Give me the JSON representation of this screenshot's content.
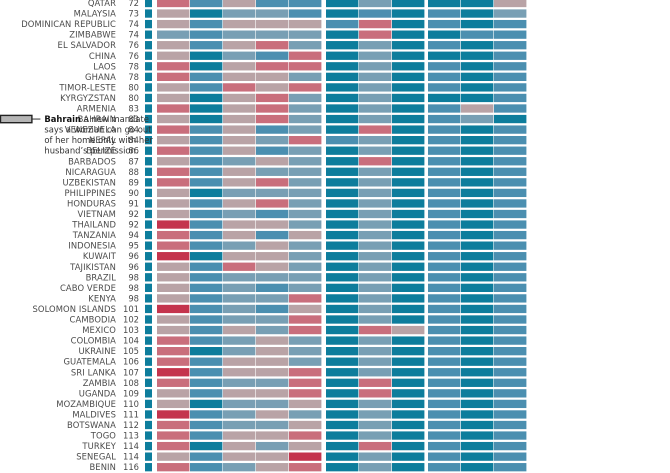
{
  "chart_data": {
    "type": "heatmap",
    "row_labels": [
      "QATAR",
      "MALAYSIA",
      "DOMINICAN REPUBLIC",
      "ZIMBABWE",
      "EL SALVADOR",
      "CHINA",
      "LAOS",
      "GHANA",
      "TIMOR-LESTE",
      "KYRGYZSTAN",
      "ARMENIA",
      "BAHRAIN",
      "VENEZUELA",
      "NEPAL",
      "BELIZE",
      "BARBADOS",
      "NICARAGUA",
      "UZBEKISTAN",
      "PHILIPPINES",
      "HONDURAS",
      "VIETNAM",
      "THAILAND",
      "TANZANIA",
      "INDONESIA",
      "KUWAIT",
      "TAJIKISTAN",
      "BRAZIL",
      "CABO VERDE",
      "KENYA",
      "SOLOMON ISLANDS",
      "CAMBODIA",
      "MEXICO",
      "COLOMBIA",
      "UKRAINE",
      "GUATEMALA",
      "SRI LANKA",
      "ZAMBIA",
      "UGANDA",
      "MOZAMBIQUE",
      "MALDIVES",
      "BOTSWANA",
      "TOGO",
      "TURKEY",
      "SENEGAL",
      "BENIN"
    ],
    "ranks": [
      "72",
      "73",
      "74",
      "74",
      "76",
      "76",
      "78",
      "78",
      "80",
      "80",
      "83",
      "83",
      "84",
      "84",
      "86",
      "87",
      "88",
      "89",
      "90",
      "91",
      "92",
      "92",
      "94",
      "95",
      "96",
      "96",
      "98",
      "98",
      "98",
      "101",
      "102",
      "103",
      "104",
      "105",
      "106",
      "107",
      "108",
      "109",
      "110",
      "111",
      "112",
      "113",
      "114",
      "114",
      "116"
    ],
    "level_colors": {
      "0": "#c4344d",
      "1": "#c96e7c",
      "2": "#b9a3a6",
      "3": "#789fb4",
      "4": "#4b8fb0",
      "5": "#0d7d9c"
    },
    "groups": [
      {
        "columns": 5
      },
      {
        "columns": 3
      },
      {
        "columns": 3
      }
    ],
    "grid": [
      [
        1,
        4,
        2,
        4,
        4,
        5,
        3,
        5,
        5,
        5,
        2
      ],
      [
        2,
        5,
        3,
        3,
        4,
        5,
        4,
        5,
        4,
        5,
        3
      ],
      [
        2,
        4,
        2,
        2,
        2,
        4,
        1,
        5,
        4,
        5,
        4
      ],
      [
        3,
        4,
        3,
        3,
        3,
        5,
        1,
        5,
        5,
        4,
        4
      ],
      [
        2,
        4,
        2,
        1,
        3,
        5,
        3,
        5,
        4,
        5,
        4
      ],
      [
        2,
        5,
        3,
        4,
        1,
        5,
        3,
        5,
        5,
        5,
        4
      ],
      [
        1,
        5,
        2,
        1,
        1,
        5,
        3,
        5,
        4,
        5,
        4
      ],
      [
        1,
        4,
        2,
        2,
        3,
        5,
        3,
        5,
        4,
        5,
        4
      ],
      [
        2,
        4,
        1,
        2,
        1,
        5,
        3,
        5,
        4,
        5,
        4
      ],
      [
        2,
        5,
        2,
        1,
        3,
        5,
        3,
        5,
        5,
        5,
        4
      ],
      [
        1,
        5,
        2,
        1,
        3,
        5,
        3,
        5,
        4,
        2,
        4
      ],
      [
        2,
        5,
        2,
        1,
        3,
        5,
        3,
        5,
        4,
        3,
        5
      ],
      [
        1,
        4,
        2,
        4,
        3,
        5,
        1,
        5,
        4,
        5,
        4
      ],
      [
        2,
        4,
        2,
        3,
        1,
        4,
        3,
        5,
        4,
        5,
        4
      ],
      [
        1,
        4,
        2,
        4,
        3,
        5,
        3,
        5,
        4,
        5,
        4
      ],
      [
        2,
        4,
        3,
        2,
        3,
        5,
        1,
        5,
        4,
        5,
        4
      ],
      [
        1,
        4,
        2,
        3,
        3,
        5,
        3,
        5,
        4,
        5,
        4
      ],
      [
        1,
        4,
        2,
        1,
        3,
        5,
        3,
        5,
        4,
        5,
        4
      ],
      [
        2,
        5,
        3,
        3,
        3,
        5,
        3,
        5,
        4,
        5,
        4
      ],
      [
        2,
        4,
        2,
        1,
        3,
        5,
        3,
        5,
        4,
        5,
        4
      ],
      [
        2,
        4,
        3,
        4,
        3,
        5,
        3,
        5,
        4,
        5,
        4
      ],
      [
        0,
        4,
        2,
        2,
        3,
        5,
        3,
        5,
        4,
        5,
        4
      ],
      [
        1,
        4,
        2,
        4,
        2,
        5,
        3,
        5,
        4,
        5,
        4
      ],
      [
        1,
        4,
        3,
        2,
        3,
        5,
        3,
        5,
        4,
        5,
        4
      ],
      [
        0,
        5,
        2,
        2,
        3,
        5,
        3,
        5,
        4,
        5,
        4
      ],
      [
        2,
        4,
        1,
        2,
        3,
        5,
        3,
        5,
        4,
        5,
        4
      ],
      [
        2,
        4,
        3,
        3,
        3,
        5,
        3,
        5,
        4,
        5,
        4
      ],
      [
        2,
        4,
        3,
        4,
        3,
        5,
        3,
        5,
        4,
        5,
        4
      ],
      [
        2,
        4,
        3,
        3,
        1,
        5,
        3,
        5,
        4,
        5,
        4
      ],
      [
        0,
        4,
        3,
        4,
        2,
        5,
        3,
        5,
        4,
        5,
        4
      ],
      [
        2,
        4,
        3,
        3,
        1,
        5,
        3,
        5,
        4,
        5,
        4
      ],
      [
        2,
        4,
        2,
        3,
        1,
        5,
        1,
        2,
        4,
        5,
        4
      ],
      [
        1,
        4,
        3,
        2,
        3,
        5,
        3,
        5,
        4,
        5,
        4
      ],
      [
        1,
        5,
        3,
        2,
        3,
        5,
        3,
        5,
        4,
        5,
        4
      ],
      [
        1,
        4,
        2,
        2,
        3,
        5,
        3,
        5,
        4,
        5,
        4
      ],
      [
        0,
        4,
        2,
        2,
        1,
        5,
        3,
        5,
        4,
        5,
        4
      ],
      [
        1,
        4,
        3,
        3,
        1,
        5,
        1,
        5,
        4,
        5,
        4
      ],
      [
        2,
        4,
        2,
        2,
        1,
        5,
        1,
        5,
        4,
        5,
        4
      ],
      [
        2,
        5,
        3,
        3,
        2,
        5,
        3,
        5,
        4,
        5,
        4
      ],
      [
        0,
        4,
        3,
        2,
        3,
        5,
        3,
        5,
        4,
        5,
        4
      ],
      [
        1,
        4,
        3,
        3,
        2,
        5,
        3,
        5,
        4,
        5,
        4
      ],
      [
        1,
        4,
        2,
        2,
        1,
        5,
        3,
        5,
        4,
        5,
        4
      ],
      [
        1,
        5,
        2,
        3,
        2,
        5,
        1,
        5,
        4,
        5,
        4
      ],
      [
        2,
        4,
        2,
        2,
        0,
        5,
        3,
        5,
        4,
        5,
        4
      ],
      [
        1,
        4,
        3,
        2,
        1,
        5,
        3,
        5,
        4,
        5,
        4
      ]
    ],
    "callout": {
      "row": "BAHRAIN",
      "column": 11,
      "highlight_color": "#b5b5b5",
      "lines": [
        {
          "bold": "Bahrain",
          "rest": " a new mandate"
        },
        {
          "bold": "",
          "rest": "says a woman can go out"
        },
        {
          "bold": "",
          "rest": "of her home only with her"
        },
        {
          "bold": "",
          "rest": "husband’s permission."
        }
      ]
    }
  }
}
